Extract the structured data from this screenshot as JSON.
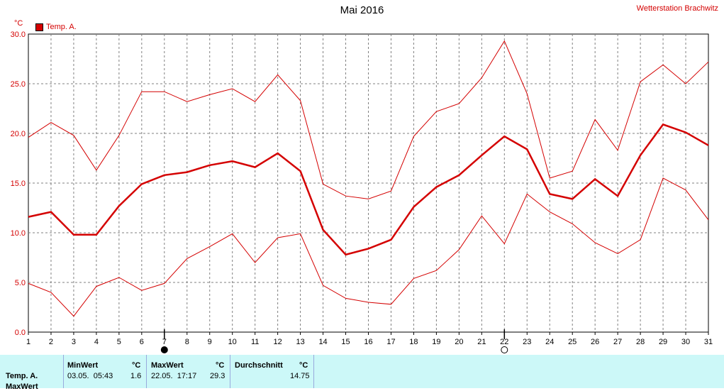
{
  "header": {
    "title": "Mai 2016",
    "station": "Wetterstation Brachwitz",
    "unit": "°C",
    "legend_label": "Temp. A."
  },
  "colors": {
    "series": "#d40000",
    "grid": "#808080",
    "table_bg": "#ccf8f8"
  },
  "chart_data": {
    "type": "line",
    "x": [
      1,
      2,
      3,
      4,
      5,
      6,
      7,
      8,
      9,
      10,
      11,
      12,
      13,
      14,
      15,
      16,
      17,
      18,
      19,
      20,
      21,
      22,
      23,
      24,
      25,
      26,
      27,
      28,
      29,
      30,
      31
    ],
    "ylim": [
      0,
      30
    ],
    "y_ticks": [
      "0.0",
      "5.0",
      "10.0",
      "15.0",
      "20.0",
      "25.0",
      "30.0"
    ],
    "grid": true,
    "series": [
      {
        "name": "Temp. A.",
        "values": [
          11.6,
          12.1,
          9.8,
          9.8,
          12.7,
          14.9,
          15.8,
          16.1,
          16.8,
          17.2,
          16.6,
          18.0,
          16.2,
          10.3,
          7.8,
          8.4,
          9.3,
          12.6,
          14.6,
          15.8,
          17.8,
          19.7,
          18.4,
          13.9,
          13.4,
          15.4,
          13.7,
          17.8,
          20.9,
          20.1,
          18.8
        ]
      },
      {
        "values": [
          19.6,
          21.1,
          19.8,
          16.3,
          19.8,
          24.2,
          24.2,
          23.2,
          23.9,
          24.5,
          23.2,
          25.9,
          23.3,
          14.9,
          13.7,
          13.4,
          14.2,
          19.7,
          22.2,
          23.0,
          25.6,
          29.3,
          24.0,
          15.5,
          16.2,
          21.4,
          18.3,
          25.2,
          26.9,
          25.0,
          27.2
        ]
      },
      {
        "values": [
          4.9,
          4.0,
          1.6,
          4.6,
          5.5,
          4.2,
          4.9,
          7.4,
          8.6,
          9.9,
          7.0,
          9.5,
          9.9,
          4.7,
          3.4,
          3.0,
          2.8,
          5.4,
          6.2,
          8.3,
          11.7,
          8.9,
          13.9,
          12.1,
          10.9,
          9.0,
          7.9,
          9.3,
          15.5,
          14.3,
          11.3
        ]
      }
    ],
    "markers": [
      {
        "day": 7,
        "symbol": "filled-circle"
      },
      {
        "day": 22,
        "symbol": "hollow-circle"
      }
    ]
  },
  "stats_table": {
    "row_label": "Temp. A.",
    "row_label_2": "MaxWert",
    "min": {
      "header": "MinWert",
      "unit": "°C",
      "datetime": "03.05.  05:43",
      "value": "1.6"
    },
    "max": {
      "header": "MaxWert",
      "unit": "°C",
      "datetime": "22.05.  17:17",
      "value": "29.3"
    },
    "avg": {
      "header": "Durchschnitt",
      "unit": "°C",
      "value": "14.75"
    }
  }
}
